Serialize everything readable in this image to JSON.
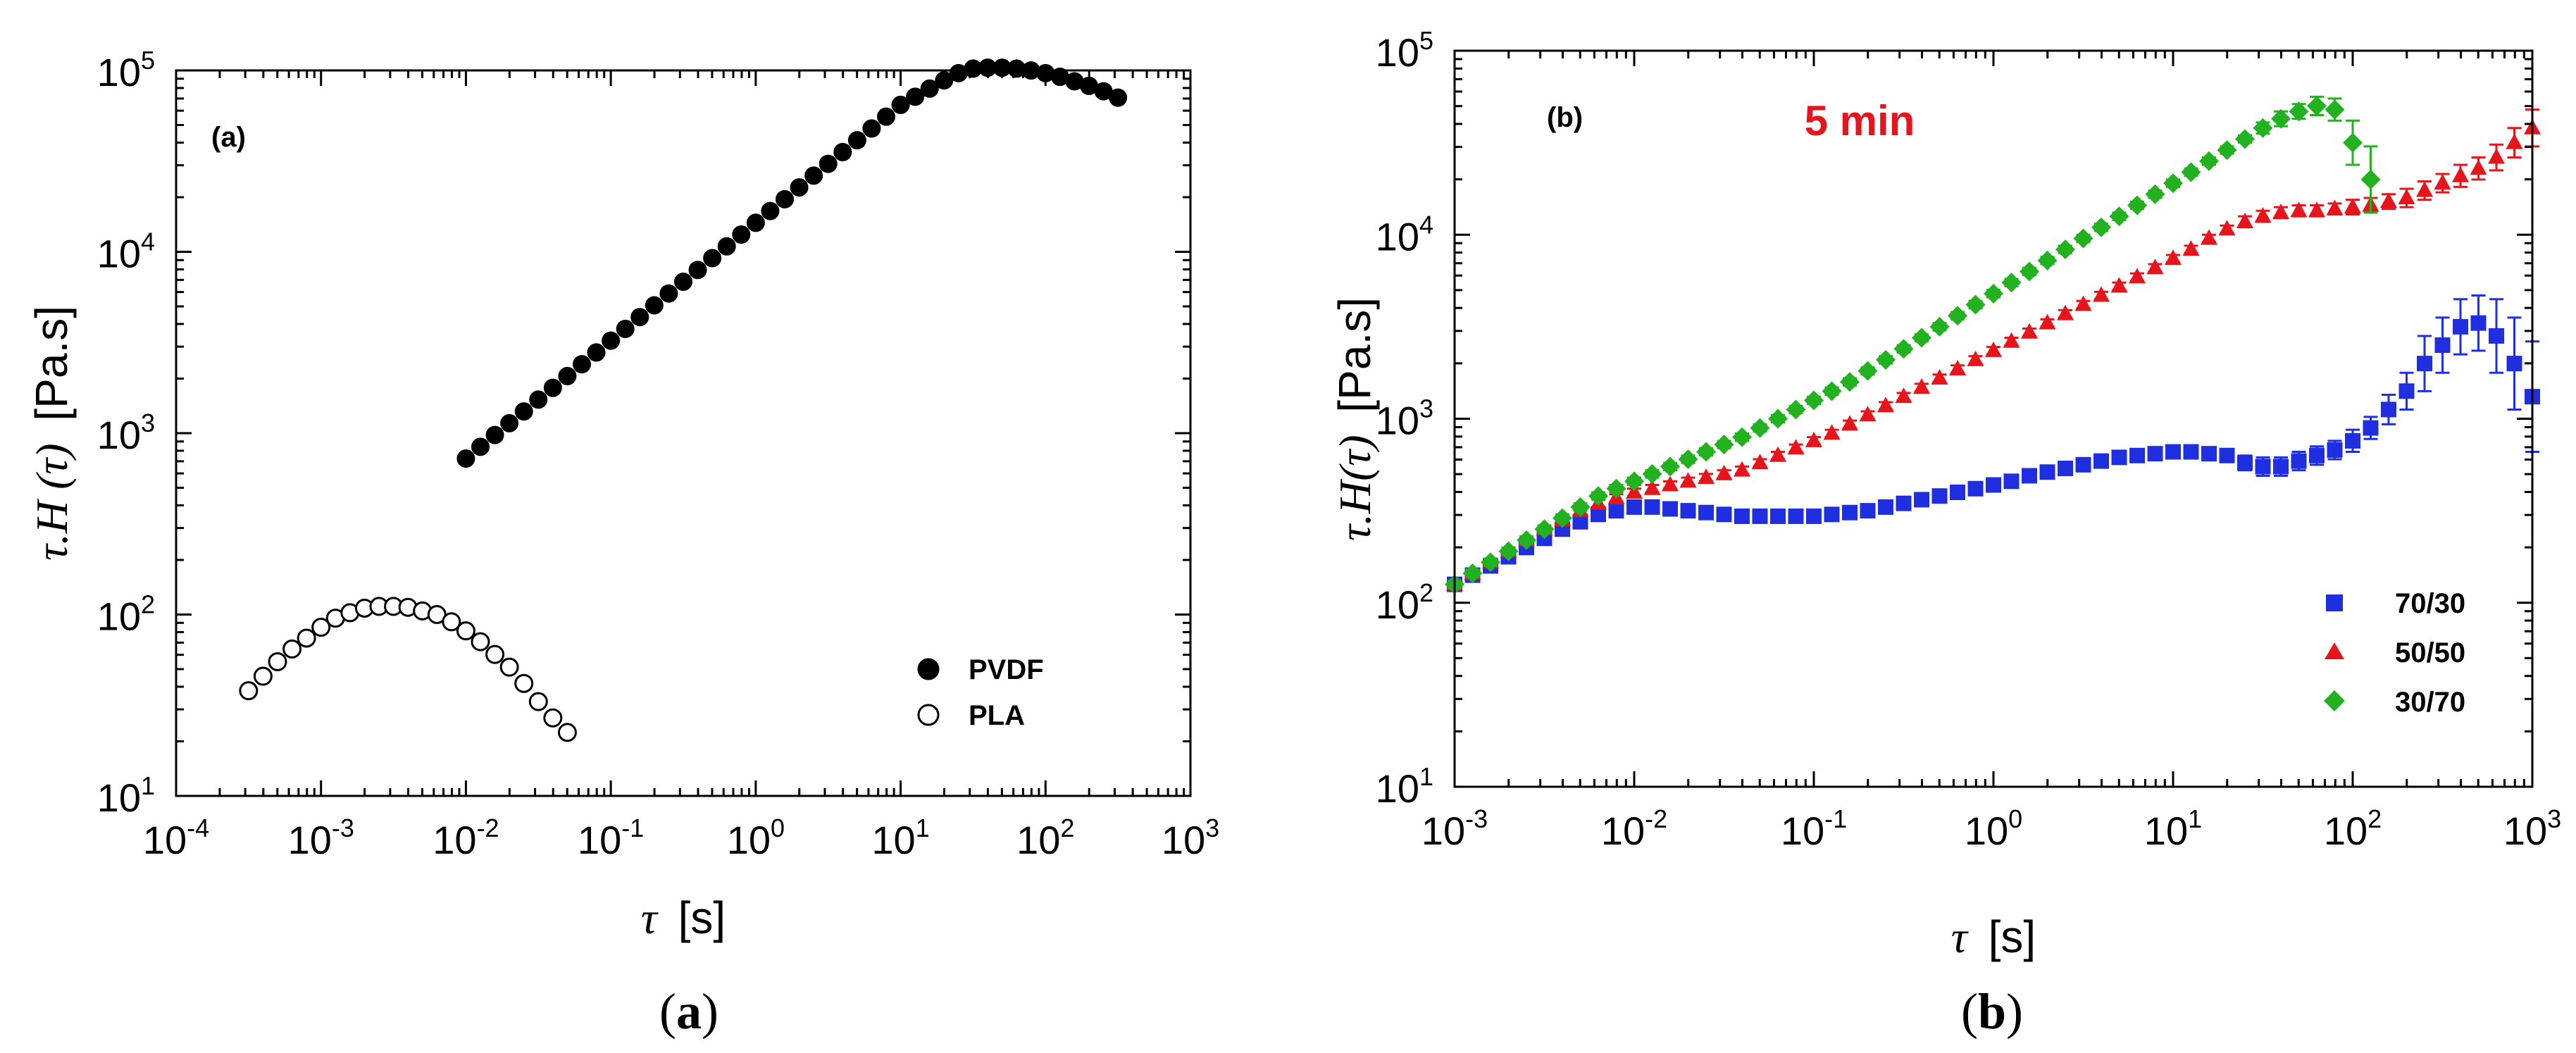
{
  "figure": {
    "captions": [
      {
        "open": "(",
        "letter": "a",
        "close": ")"
      },
      {
        "open": "(",
        "letter": "b",
        "close": ")"
      }
    ]
  },
  "chart_data": [
    {
      "id": "a",
      "type": "scatter",
      "scale": "log-log",
      "panel_tag": "(a)",
      "title": "",
      "xlabel": {
        "symbol": "τ",
        "unit": "[s]"
      },
      "ylabel": {
        "symbol": "τ.H (τ)",
        "unit": "[Pa.s]"
      },
      "xlim_exp": [
        -4,
        3
      ],
      "ylim_exp": [
        1,
        5
      ],
      "x_ticks": [
        -4,
        -3,
        -2,
        -1,
        0,
        1,
        2,
        3
      ],
      "y_ticks": [
        1,
        2,
        3,
        4,
        5
      ],
      "tick_base": "10",
      "legend_position": "bottom-right",
      "series": [
        {
          "name": "PVDF",
          "marker": "filled-circle",
          "color": "#000000",
          "x_log": [
            -2,
            -1.9,
            -1.8,
            -1.7,
            -1.6,
            -1.5,
            -1.4,
            -1.3,
            -1.2,
            -1.1,
            -1,
            -0.9,
            -0.8,
            -0.7,
            -0.6,
            -0.5,
            -0.4,
            -0.3,
            -0.2,
            -0.1,
            0,
            0.1,
            0.2,
            0.3,
            0.4,
            0.5,
            0.6,
            0.7,
            0.8,
            0.9,
            1,
            1.1,
            1.2,
            1.3,
            1.4,
            1.5,
            1.6,
            1.7,
            1.8,
            1.9,
            2,
            2.1,
            2.2,
            2.3,
            2.4,
            2.5
          ],
          "y_log": [
            2.86,
            2.925,
            2.99,
            3.055,
            3.12,
            3.185,
            3.25,
            3.315,
            3.38,
            3.445,
            3.51,
            3.575,
            3.64,
            3.705,
            3.77,
            3.835,
            3.9,
            3.965,
            4.03,
            4.095,
            4.16,
            4.225,
            4.29,
            4.355,
            4.42,
            4.485,
            4.55,
            4.615,
            4.68,
            4.745,
            4.81,
            4.855,
            4.9,
            4.945,
            4.985,
            5.01,
            5.015,
            5.015,
            5.01,
            5.0,
            4.985,
            4.965,
            4.94,
            4.915,
            4.885,
            4.85
          ]
        },
        {
          "name": "PLA",
          "marker": "open-circle",
          "color": "#000000",
          "x_log": [
            -3.5,
            -3.4,
            -3.3,
            -3.2,
            -3.1,
            -3.0,
            -2.9,
            -2.8,
            -2.7,
            -2.6,
            -2.5,
            -2.4,
            -2.3,
            -2.2,
            -2.1,
            -2.0,
            -1.9,
            -1.8,
            -1.7,
            -1.6,
            -1.5,
            -1.4,
            -1.3
          ],
          "y_log": [
            1.58,
            1.66,
            1.74,
            1.81,
            1.87,
            1.93,
            1.98,
            2.01,
            2.035,
            2.045,
            2.045,
            2.04,
            2.02,
            2.0,
            1.96,
            1.91,
            1.85,
            1.78,
            1.71,
            1.62,
            1.52,
            1.43,
            1.35
          ]
        }
      ]
    },
    {
      "id": "b",
      "type": "scatter",
      "scale": "log-log",
      "panel_tag": "(b)",
      "annotation": "5 min",
      "annotation_color": "#e8141b",
      "title": "",
      "xlabel": {
        "symbol": "τ",
        "unit": "[s]"
      },
      "ylabel": {
        "symbol": "τ.H(τ)",
        "unit": "[Pa.s]"
      },
      "xlim_exp": [
        -3,
        3
      ],
      "ylim_exp": [
        1,
        5
      ],
      "x_ticks": [
        -3,
        -2,
        -1,
        0,
        1,
        2,
        3
      ],
      "y_ticks": [
        1,
        2,
        3,
        4,
        5
      ],
      "tick_base": "10",
      "legend_position": "bottom-right",
      "series": [
        {
          "name": "70/30",
          "marker": "square",
          "color": "#1f2fe0",
          "x_log": [
            -3.0,
            -2.9,
            -2.8,
            -2.7,
            -2.6,
            -2.5,
            -2.4,
            -2.3,
            -2.2,
            -2.1,
            -2.0,
            -1.9,
            -1.8,
            -1.7,
            -1.6,
            -1.5,
            -1.4,
            -1.3,
            -1.2,
            -1.1,
            -1.0,
            -0.9,
            -0.8,
            -0.7,
            -0.6,
            -0.5,
            -0.4,
            -0.3,
            -0.2,
            -0.1,
            0.0,
            0.1,
            0.2,
            0.3,
            0.4,
            0.5,
            0.6,
            0.7,
            0.8,
            0.9,
            1.0,
            1.1,
            1.2,
            1.3,
            1.4,
            1.5,
            1.6,
            1.7,
            1.8,
            1.9,
            2.0,
            2.1,
            2.2,
            2.3,
            2.4,
            2.5,
            2.6,
            2.7,
            2.8,
            2.9,
            3.0
          ],
          "y_log": [
            2.1,
            2.15,
            2.2,
            2.25,
            2.3,
            2.35,
            2.4,
            2.44,
            2.48,
            2.5,
            2.52,
            2.52,
            2.51,
            2.5,
            2.49,
            2.48,
            2.47,
            2.47,
            2.47,
            2.47,
            2.47,
            2.48,
            2.49,
            2.5,
            2.52,
            2.54,
            2.56,
            2.58,
            2.6,
            2.62,
            2.64,
            2.66,
            2.69,
            2.71,
            2.73,
            2.75,
            2.77,
            2.79,
            2.8,
            2.81,
            2.82,
            2.82,
            2.81,
            2.8,
            2.76,
            2.74,
            2.74,
            2.77,
            2.8,
            2.83,
            2.88,
            2.95,
            3.05,
            3.15,
            3.3,
            3.4,
            3.5,
            3.52,
            3.45,
            3.3,
            3.12
          ],
          "err": [
            0.02,
            0.02,
            0.02,
            0.02,
            0.02,
            0.02,
            0.02,
            0.02,
            0.02,
            0.02,
            0.02,
            0.02,
            0.02,
            0.02,
            0.02,
            0.02,
            0.02,
            0.02,
            0.02,
            0.02,
            0.02,
            0.02,
            0.02,
            0.02,
            0.02,
            0.02,
            0.02,
            0.02,
            0.02,
            0.02,
            0.02,
            0.02,
            0.02,
            0.02,
            0.02,
            0.02,
            0.02,
            0.02,
            0.02,
            0.02,
            0.02,
            0.03,
            0.03,
            0.03,
            0.04,
            0.05,
            0.05,
            0.05,
            0.05,
            0.05,
            0.06,
            0.06,
            0.08,
            0.1,
            0.15,
            0.15,
            0.15,
            0.15,
            0.2,
            0.25,
            0.3
          ]
        },
        {
          "name": "50/50",
          "marker": "triangle",
          "color": "#e8141b",
          "x_log": [
            -3.0,
            -2.9,
            -2.8,
            -2.7,
            -2.6,
            -2.5,
            -2.4,
            -2.3,
            -2.2,
            -2.1,
            -2.0,
            -1.9,
            -1.8,
            -1.7,
            -1.6,
            -1.5,
            -1.4,
            -1.3,
            -1.2,
            -1.1,
            -1.0,
            -0.9,
            -0.8,
            -0.7,
            -0.6,
            -0.5,
            -0.4,
            -0.3,
            -0.2,
            -0.1,
            0.0,
            0.1,
            0.2,
            0.3,
            0.4,
            0.5,
            0.6,
            0.7,
            0.8,
            0.9,
            1.0,
            1.1,
            1.2,
            1.3,
            1.4,
            1.5,
            1.6,
            1.7,
            1.8,
            1.9,
            2.0,
            2.1,
            2.2,
            2.3,
            2.4,
            2.5,
            2.6,
            2.7,
            2.8,
            2.9,
            3.0
          ],
          "y_log": [
            2.1,
            2.16,
            2.22,
            2.28,
            2.34,
            2.4,
            2.45,
            2.5,
            2.54,
            2.57,
            2.6,
            2.62,
            2.64,
            2.66,
            2.68,
            2.7,
            2.72,
            2.76,
            2.8,
            2.84,
            2.88,
            2.92,
            2.97,
            3.02,
            3.07,
            3.12,
            3.17,
            3.22,
            3.27,
            3.32,
            3.37,
            3.42,
            3.47,
            3.52,
            3.57,
            3.62,
            3.67,
            3.72,
            3.77,
            3.82,
            3.87,
            3.92,
            3.98,
            4.03,
            4.07,
            4.1,
            4.12,
            4.13,
            4.13,
            4.14,
            4.15,
            4.16,
            4.18,
            4.2,
            4.24,
            4.28,
            4.32,
            4.36,
            4.42,
            4.5,
            4.58
          ],
          "err": [
            0.02,
            0.02,
            0.02,
            0.02,
            0.02,
            0.02,
            0.02,
            0.02,
            0.02,
            0.02,
            0.02,
            0.02,
            0.02,
            0.02,
            0.02,
            0.02,
            0.02,
            0.02,
            0.02,
            0.02,
            0.02,
            0.02,
            0.02,
            0.02,
            0.02,
            0.02,
            0.02,
            0.02,
            0.02,
            0.02,
            0.02,
            0.02,
            0.02,
            0.02,
            0.02,
            0.02,
            0.02,
            0.02,
            0.02,
            0.02,
            0.02,
            0.02,
            0.02,
            0.02,
            0.03,
            0.03,
            0.03,
            0.03,
            0.03,
            0.03,
            0.04,
            0.04,
            0.04,
            0.05,
            0.05,
            0.05,
            0.06,
            0.06,
            0.07,
            0.08,
            0.1
          ]
        },
        {
          "name": "30/70",
          "marker": "diamond",
          "color": "#22b21f",
          "x_log": [
            -3.0,
            -2.9,
            -2.8,
            -2.7,
            -2.6,
            -2.5,
            -2.4,
            -2.3,
            -2.2,
            -2.1,
            -2.0,
            -1.9,
            -1.8,
            -1.7,
            -1.6,
            -1.5,
            -1.4,
            -1.3,
            -1.2,
            -1.1,
            -1.0,
            -0.9,
            -0.8,
            -0.7,
            -0.6,
            -0.5,
            -0.4,
            -0.3,
            -0.2,
            -0.1,
            0.0,
            0.1,
            0.2,
            0.3,
            0.4,
            0.5,
            0.6,
            0.7,
            0.8,
            0.9,
            1.0,
            1.1,
            1.2,
            1.3,
            1.4,
            1.5,
            1.6,
            1.7,
            1.8,
            1.9,
            2.0,
            2.1
          ],
          "y_log": [
            2.1,
            2.16,
            2.22,
            2.28,
            2.34,
            2.4,
            2.46,
            2.52,
            2.58,
            2.62,
            2.66,
            2.7,
            2.74,
            2.78,
            2.82,
            2.86,
            2.9,
            2.95,
            3.0,
            3.05,
            3.1,
            3.15,
            3.2,
            3.26,
            3.32,
            3.38,
            3.44,
            3.5,
            3.56,
            3.62,
            3.68,
            3.74,
            3.8,
            3.86,
            3.92,
            3.98,
            4.04,
            4.1,
            4.16,
            4.22,
            4.28,
            4.34,
            4.4,
            4.46,
            4.52,
            4.58,
            4.63,
            4.67,
            4.7,
            4.68,
            4.5,
            4.3
          ],
          "err": [
            0.02,
            0.02,
            0.02,
            0.02,
            0.02,
            0.02,
            0.02,
            0.02,
            0.02,
            0.02,
            0.02,
            0.02,
            0.02,
            0.02,
            0.02,
            0.02,
            0.02,
            0.02,
            0.02,
            0.02,
            0.02,
            0.02,
            0.02,
            0.02,
            0.02,
            0.02,
            0.02,
            0.02,
            0.02,
            0.02,
            0.02,
            0.02,
            0.02,
            0.02,
            0.02,
            0.02,
            0.02,
            0.02,
            0.02,
            0.02,
            0.02,
            0.02,
            0.02,
            0.02,
            0.02,
            0.03,
            0.04,
            0.04,
            0.05,
            0.06,
            0.12,
            0.18
          ]
        }
      ]
    }
  ]
}
